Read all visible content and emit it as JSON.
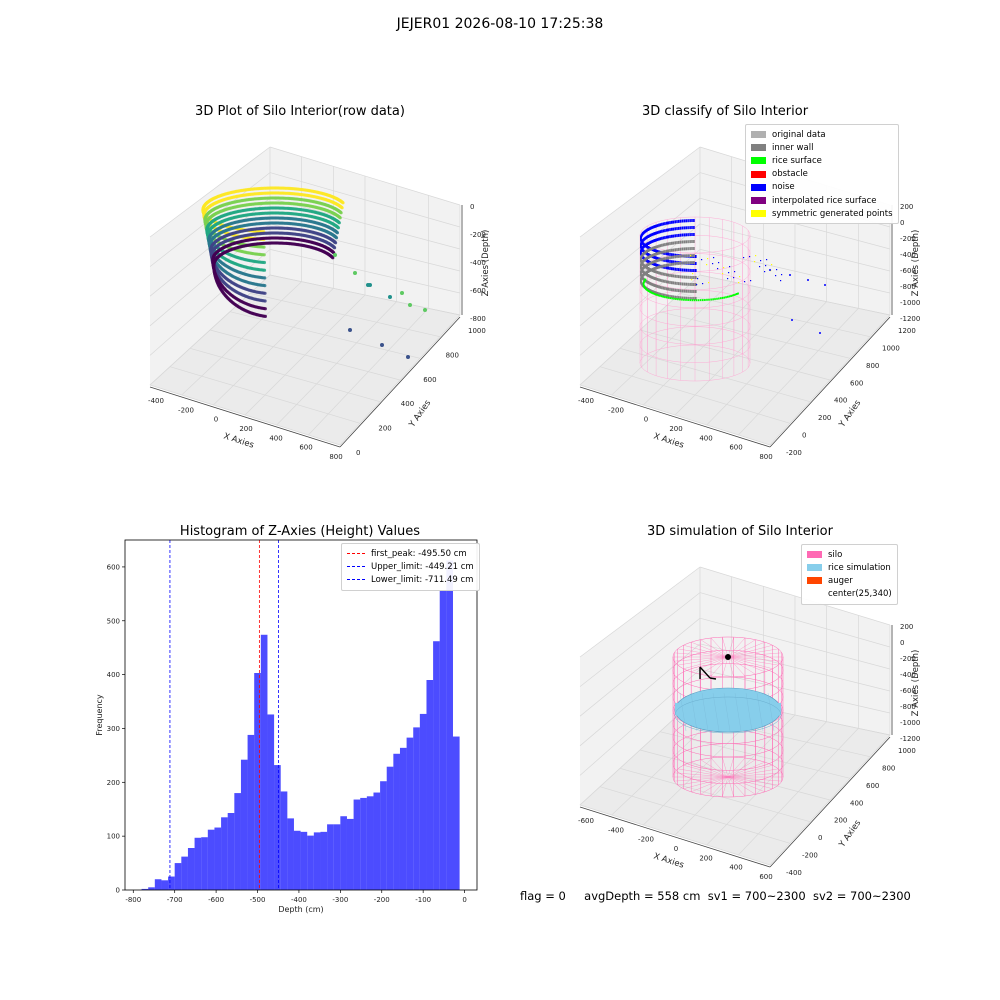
{
  "suptitle": "JEJER01 2026-08-10 17:25:38",
  "footer": {
    "flag": "flag = 0",
    "avg": "avgDepth = 558 cm",
    "sv1": "sv1 = 700~2300",
    "sv2": "sv2 = 700~2300"
  },
  "panels": {
    "raw": {
      "title": "3D Plot of Silo Interior(row data)",
      "xlabel": "X Axies",
      "ylabel": "Y Axies",
      "zlabel": "Z Axies (Depth)",
      "xticks": [
        "-400",
        "-200",
        "0",
        "200",
        "400",
        "600",
        "800"
      ],
      "yticks": [
        "0",
        "200",
        "400",
        "600",
        "800",
        "1000"
      ],
      "zticks": [
        "0",
        "-200",
        "-400",
        "-600",
        "-800"
      ]
    },
    "classify": {
      "title": "3D classify of Silo Interior",
      "xlabel": "X Axies",
      "ylabel": "Y Axies",
      "zlabel": "Z Axies (Depth)",
      "xticks": [
        "-400",
        "-200",
        "0",
        "200",
        "400",
        "600",
        "800"
      ],
      "yticks": [
        "-200",
        "0",
        "200",
        "400",
        "600",
        "800",
        "1000",
        "1200"
      ],
      "zticks": [
        "200",
        "0",
        "-200",
        "-400",
        "-600",
        "-800",
        "-1000",
        "-1200"
      ],
      "legend": [
        {
          "label": "original data",
          "color": "#b0b0b0"
        },
        {
          "label": "inner wall",
          "color": "#808080"
        },
        {
          "label": "rice surface",
          "color": "#00ff00"
        },
        {
          "label": "obstacle",
          "color": "#ff0000"
        },
        {
          "label": "noise",
          "color": "#0000ff"
        },
        {
          "label": "interpolated rice surface",
          "color": "#800080"
        },
        {
          "label": "symmetric generated points",
          "color": "#ffff00"
        }
      ]
    },
    "sim": {
      "title": "3D simulation of Silo Interior",
      "xlabel": "X Axies",
      "ylabel": "Y Axies",
      "zlabel": "Z Axies (Depth)",
      "xticks": [
        "-600",
        "-400",
        "-200",
        "0",
        "200",
        "400",
        "600"
      ],
      "yticks": [
        "-400",
        "-200",
        "0",
        "200",
        "400",
        "600",
        "800",
        "1000"
      ],
      "zticks": [
        "200",
        "0",
        "-200",
        "-400",
        "-600",
        "-800",
        "-1000",
        "-1200"
      ],
      "legend": [
        {
          "label": "silo",
          "color": "#ff69b4"
        },
        {
          "label": "rice simulation",
          "color": "#87ceeb"
        },
        {
          "label": "auger",
          "color": "#ff4500"
        },
        {
          "label": "center(25,340)",
          "color": ""
        }
      ]
    }
  },
  "chart_data": {
    "type": "bar",
    "title": "Histogram of Z-Axies (Height) Values",
    "xlabel": "Depth (cm)",
    "ylabel": "Frequency",
    "xlim": [
      -820,
      30
    ],
    "ylim": [
      0,
      650
    ],
    "xticks": [
      -800,
      -700,
      -600,
      -500,
      -400,
      -300,
      -200,
      -100,
      0
    ],
    "yticks": [
      0,
      100,
      200,
      300,
      400,
      500,
      600
    ],
    "bar_color": "#0000ff",
    "bins": {
      "start": -780,
      "width": 16,
      "counts": [
        2,
        5,
        20,
        18,
        25,
        50,
        62,
        78,
        97,
        98,
        112,
        116,
        135,
        143,
        180,
        242,
        288,
        403,
        474,
        326,
        232,
        183,
        133,
        110,
        108,
        101,
        107,
        108,
        122,
        122,
        137,
        132,
        168,
        171,
        174,
        181,
        202,
        229,
        253,
        264,
        283,
        302,
        327,
        390,
        462,
        556,
        612,
        285
      ]
    },
    "lines": [
      {
        "label": "first_peak: -495.50 cm",
        "x": -495.5,
        "color": "#ff0000"
      },
      {
        "label": "Upper_limit: -449.21 cm",
        "x": -449.21,
        "color": "#0000ff"
      },
      {
        "label": "Lower_limit: -711.49 cm",
        "x": -711.49,
        "color": "#0000ff"
      }
    ]
  }
}
